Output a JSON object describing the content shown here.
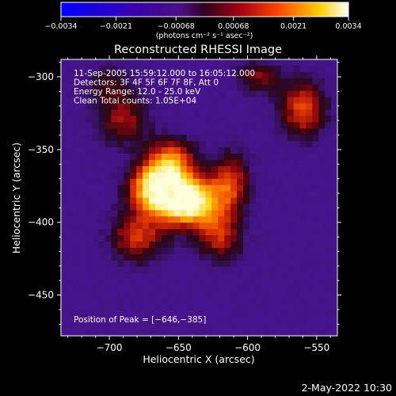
{
  "chart_data": {
    "type": "heatmap",
    "title": "Reconstructed RHESSI Image",
    "xlabel": "Heliocentric X (arcsec)",
    "ylabel": "Heliocentric Y (arcsec)",
    "xlim": [
      -735,
      -535
    ],
    "ylim": [
      -478,
      -288
    ],
    "xticks": [
      -700,
      -650,
      -600,
      -550
    ],
    "yticks": [
      -300,
      -350,
      -400,
      -450
    ],
    "xtick_labels": [
      "−700",
      "−650",
      "−600",
      "−550"
    ],
    "ytick_labels": [
      "−300",
      "−350",
      "−400",
      "−450"
    ],
    "annotations": [
      "11-Sep-2005 15:59:12.000 to 16:05:12.000",
      "Detectors: 3F 4F 5F 6F 7F 8F, Att 0",
      "Energy Range: 12.0 - 25.0 keV",
      "Clean     Total counts: 1.05E+04"
    ],
    "peak_label": "Position of Peak = [−646,−385]",
    "peak": [
      -646,
      -385
    ],
    "colorbar": {
      "min": -0.0034,
      "max": 0.0034,
      "ticks": [
        -0.0034,
        -0.0021,
        -0.00068,
        0.00068,
        0.0021,
        0.0034
      ],
      "tick_labels": [
        "−0.0034",
        "−0.0021",
        "−0.00068",
        "0.00068",
        "0.0021",
        "0.0034"
      ],
      "units": "(photons cm⁻² s⁻¹ asec⁻²)"
    },
    "grid": false,
    "sources": [
      {
        "x": -665,
        "y": -376,
        "amp": 1.0,
        "sx": 14,
        "sy": 12
      },
      {
        "x": -642,
        "y": -386,
        "amp": 1.0,
        "sx": 16,
        "sy": 12
      },
      {
        "x": -655,
        "y": -356,
        "amp": 0.55,
        "sx": 12,
        "sy": 10
      },
      {
        "x": -680,
        "y": -410,
        "amp": 0.5,
        "sx": 14,
        "sy": 12
      },
      {
        "x": -620,
        "y": -410,
        "amp": 0.45,
        "sx": 12,
        "sy": 12
      },
      {
        "x": -612,
        "y": -372,
        "amp": 0.5,
        "sx": 10,
        "sy": 14
      },
      {
        "x": -690,
        "y": -330,
        "amp": 0.4,
        "sx": 14,
        "sy": 12
      },
      {
        "x": -560,
        "y": -322,
        "amp": 0.55,
        "sx": 12,
        "sy": 14
      },
      {
        "x": -592,
        "y": -300,
        "amp": 0.35,
        "sx": 12,
        "sy": 8
      },
      {
        "x": -700,
        "y": -305,
        "amp": 0.25,
        "sx": 12,
        "sy": 10
      }
    ]
  },
  "footer": {
    "timestamp": "2-May-2022 10:30"
  }
}
